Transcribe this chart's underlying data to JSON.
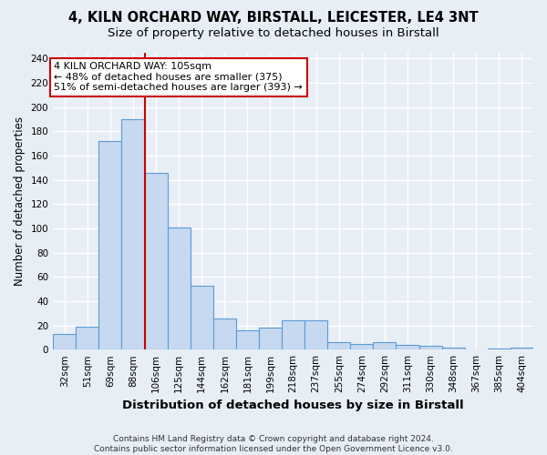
{
  "title_line1": "4, KILN ORCHARD WAY, BIRSTALL, LEICESTER, LE4 3NT",
  "title_line2": "Size of property relative to detached houses in Birstall",
  "xlabel": "Distribution of detached houses by size in Birstall",
  "ylabel": "Number of detached properties",
  "categories": [
    "32sqm",
    "51sqm",
    "69sqm",
    "88sqm",
    "106sqm",
    "125sqm",
    "144sqm",
    "162sqm",
    "181sqm",
    "199sqm",
    "218sqm",
    "237sqm",
    "255sqm",
    "274sqm",
    "292sqm",
    "311sqm",
    "330sqm",
    "348sqm",
    "367sqm",
    "385sqm",
    "404sqm"
  ],
  "values": [
    13,
    19,
    172,
    190,
    146,
    101,
    53,
    26,
    16,
    18,
    24,
    24,
    6,
    5,
    6,
    4,
    3,
    2,
    0,
    1,
    2
  ],
  "bar_color": "#c6d9f0",
  "bar_edge_color": "#5b9bd5",
  "vline_x": 3.5,
  "vline_color": "#cc0000",
  "annotation_text": "4 KILN ORCHARD WAY: 105sqm\n← 48% of detached houses are smaller (375)\n51% of semi-detached houses are larger (393) →",
  "annotation_box_color": "#ffffff",
  "annotation_box_edge": "#cc0000",
  "ylim": [
    0,
    245
  ],
  "yticks": [
    0,
    20,
    40,
    60,
    80,
    100,
    120,
    140,
    160,
    180,
    200,
    220,
    240
  ],
  "footer": "Contains HM Land Registry data © Crown copyright and database right 2024.\nContains public sector information licensed under the Open Government Licence v3.0.",
  "background_color": "#e8eef6",
  "plot_background": "#e8eef6",
  "grid_color": "#ffffff",
  "title_fontsize": 10.5,
  "subtitle_fontsize": 9.5,
  "axis_label_fontsize": 8.5,
  "tick_fontsize": 7.5,
  "footer_fontsize": 6.5
}
